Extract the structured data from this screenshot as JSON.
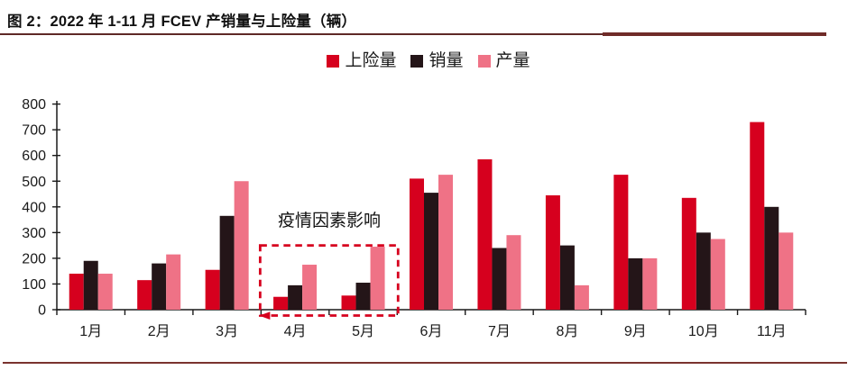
{
  "chart_data": {
    "type": "bar",
    "title": "图 2：2022 年 1-11 月 FCEV 产销量与上险量（辆）",
    "unit": "辆",
    "categories": [
      "1月",
      "2月",
      "3月",
      "4月",
      "5月",
      "6月",
      "7月",
      "8月",
      "9月",
      "10月",
      "11月"
    ],
    "series": [
      {
        "name": "上险量",
        "color": "#D6001E",
        "values": [
          140,
          115,
          155,
          50,
          55,
          510,
          585,
          445,
          525,
          435,
          730
        ]
      },
      {
        "name": "销量",
        "color": "#241518",
        "values": [
          190,
          180,
          365,
          95,
          105,
          455,
          240,
          250,
          200,
          300,
          400
        ]
      },
      {
        "name": "产量",
        "color": "#EF7286",
        "values": [
          140,
          215,
          500,
          175,
          245,
          525,
          290,
          95,
          200,
          275,
          300
        ]
      }
    ],
    "xlabel": "",
    "ylabel": "",
    "ylim": [
      0,
      800
    ],
    "ytick_step": 100,
    "grid": false,
    "legend_position": "top-center",
    "annotation": {
      "text": "疫情因素影响",
      "box_categories": [
        "4月",
        "5月"
      ],
      "box_top_value": 250,
      "box_color": "#D6001E"
    }
  },
  "colors": {
    "title_rule_thin": "#5e2826",
    "title_rule_thick": "#6F2B28",
    "footer_rule": "#7A332E",
    "axis": "#1a1a1a"
  }
}
